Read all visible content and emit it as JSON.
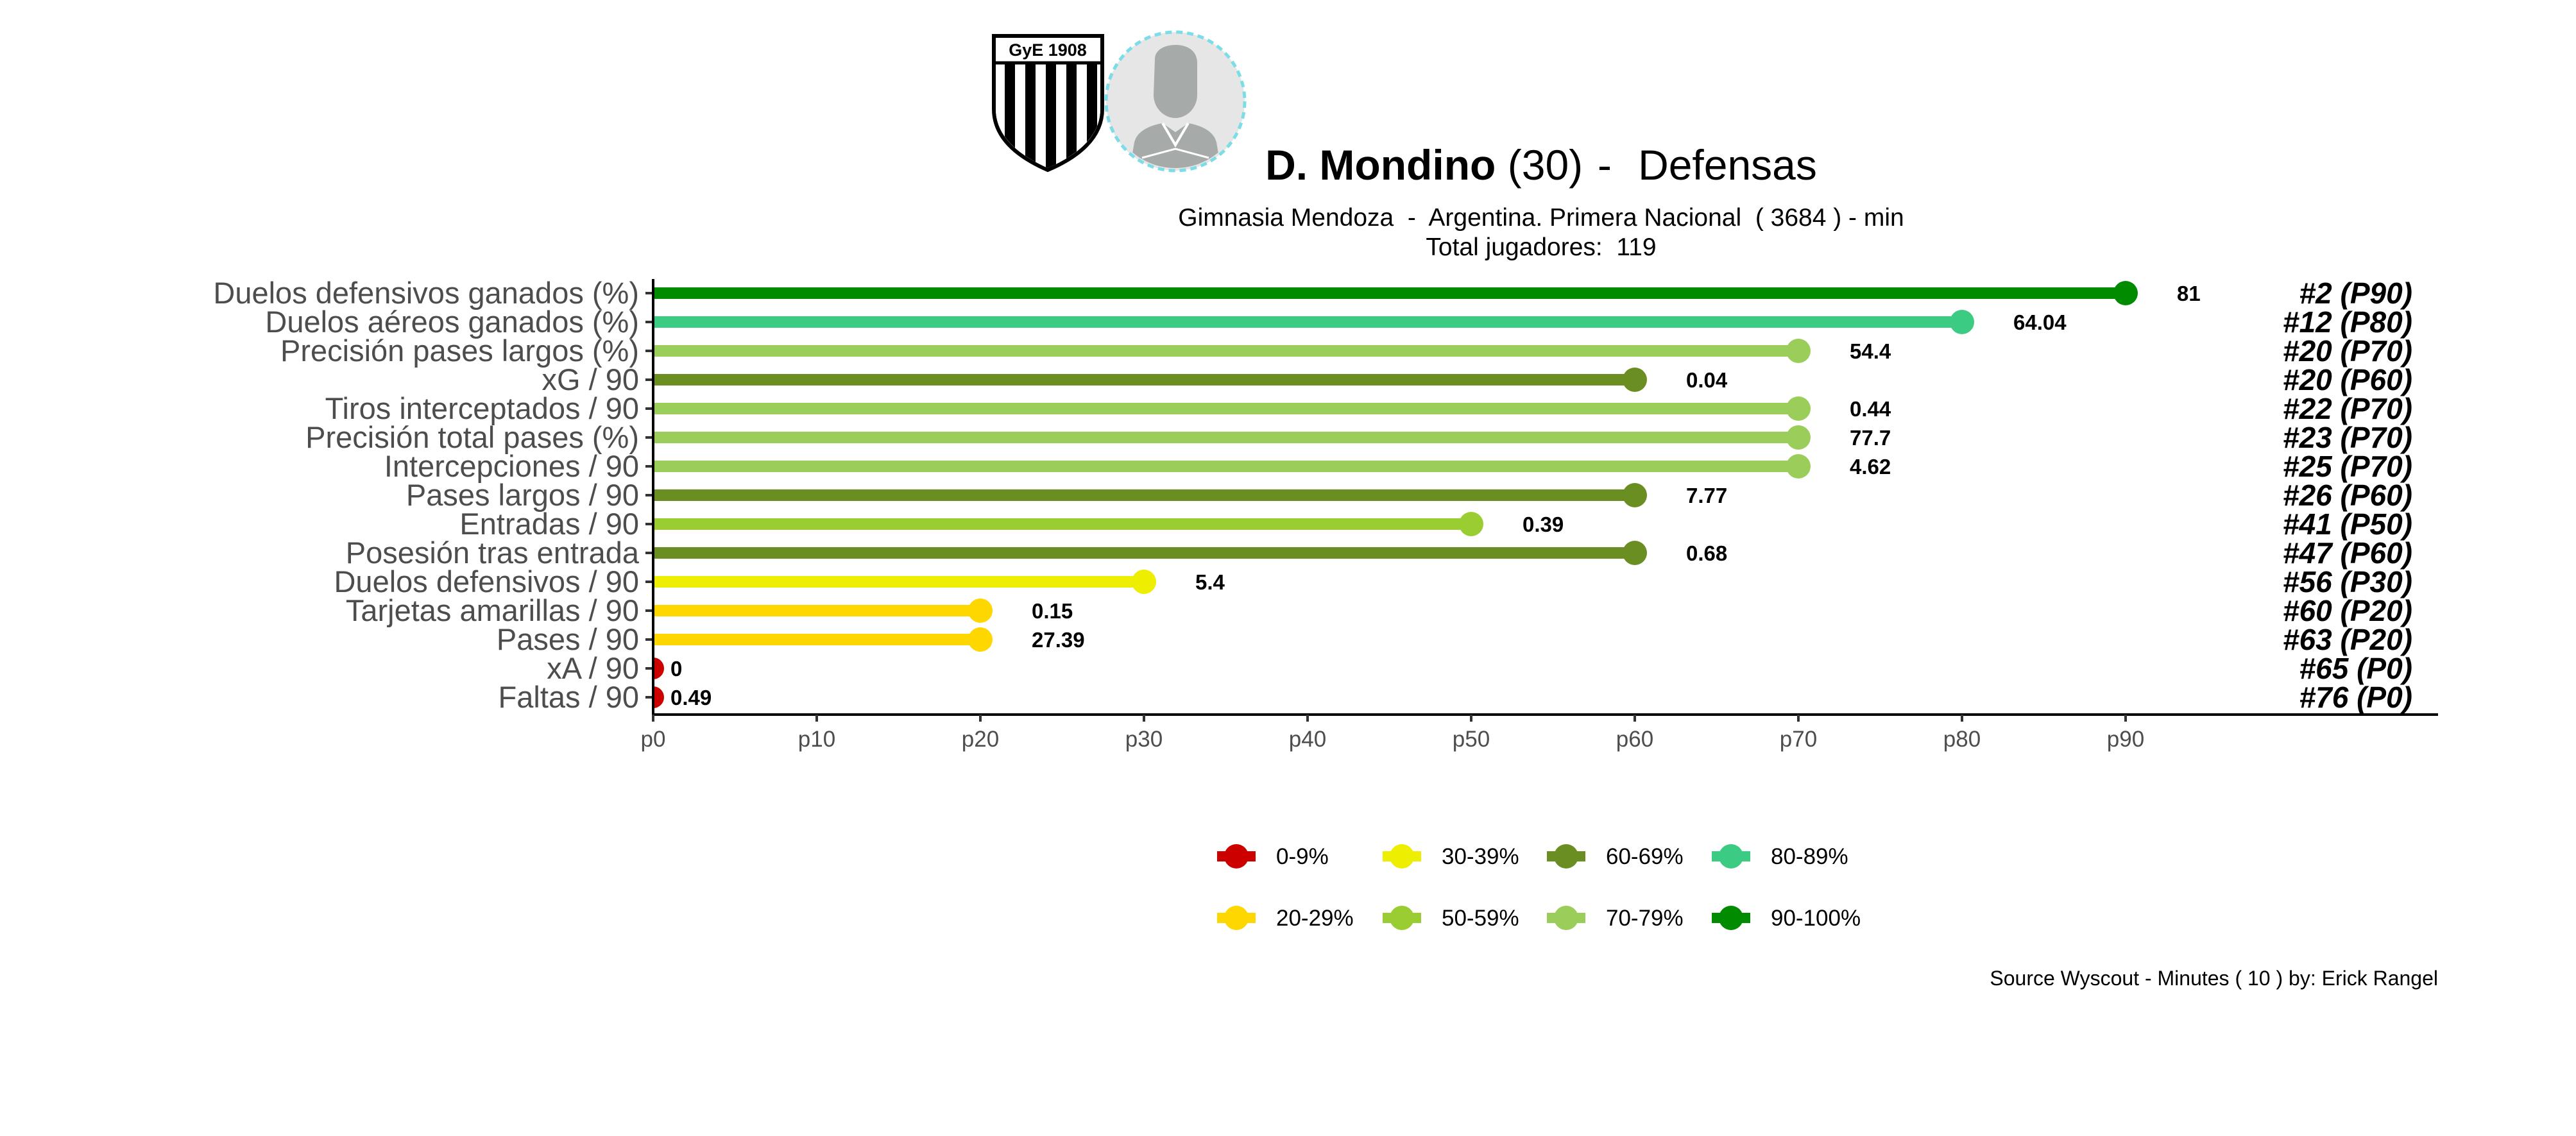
{
  "header": {
    "player_name": "D. Mondino",
    "player_age": "(30)",
    "separator": " -  ",
    "position": "Defensas",
    "team_line": "Gimnasia Mendoza  -  Argentina. Primera Nacional  ( 3684 ) - min",
    "total_line": "Total jugadores:  119",
    "crest_text": "GyE 1908",
    "crest_icon": "club-crest-icon",
    "avatar_icon": "player-silhouette-icon"
  },
  "chart_data": {
    "type": "bar",
    "orientation": "horizontal-lollipop",
    "title": "",
    "xlabel": "",
    "ylabel": "",
    "xlim": [
      0,
      100
    ],
    "grid": false,
    "ticks": [
      {
        "value": 0,
        "label": "p0"
      },
      {
        "value": 10,
        "label": "p10"
      },
      {
        "value": 20,
        "label": "p20"
      },
      {
        "value": 30,
        "label": "p30"
      },
      {
        "value": 40,
        "label": "p40"
      },
      {
        "value": 50,
        "label": "p50"
      },
      {
        "value": 60,
        "label": "p60"
      },
      {
        "value": 70,
        "label": "p70"
      },
      {
        "value": 80,
        "label": "p80"
      },
      {
        "value": 90,
        "label": "p90"
      }
    ],
    "rows": [
      {
        "metric": "Duelos defensivos ganados (%)",
        "percentile": 90,
        "value": "81",
        "rank": "#2 (P90)",
        "color": "#008B00"
      },
      {
        "metric": "Duelos aéreos ganados (%)",
        "percentile": 80,
        "value": "64.04",
        "rank": "#12 (P80)",
        "color": "#3CCB82"
      },
      {
        "metric": "Precisión pases largos (%)",
        "percentile": 70,
        "value": "54.4",
        "rank": "#20 (P70)",
        "color": "#9ACD5A"
      },
      {
        "metric": "xG / 90",
        "percentile": 60,
        "value": "0.04",
        "rank": "#20 (P60)",
        "color": "#6B8E23"
      },
      {
        "metric": "Tiros interceptados / 90",
        "percentile": 70,
        "value": "0.44",
        "rank": "#22 (P70)",
        "color": "#9ACD5A"
      },
      {
        "metric": "Precisión total pases (%)",
        "percentile": 70,
        "value": "77.7",
        "rank": "#23 (P70)",
        "color": "#9ACD5A"
      },
      {
        "metric": "Intercepciones / 90",
        "percentile": 70,
        "value": "4.62",
        "rank": "#25 (P70)",
        "color": "#9ACD5A"
      },
      {
        "metric": "Pases largos / 90",
        "percentile": 60,
        "value": "7.77",
        "rank": "#26 (P60)",
        "color": "#6B8E23"
      },
      {
        "metric": "Entradas / 90",
        "percentile": 50,
        "value": "0.39",
        "rank": "#41 (P50)",
        "color": "#9ACD32"
      },
      {
        "metric": "Posesión tras entrada",
        "percentile": 60,
        "value": "0.68",
        "rank": "#47 (P60)",
        "color": "#6B8E23"
      },
      {
        "metric": "Duelos defensivos / 90",
        "percentile": 30,
        "value": "5.4",
        "rank": "#56 (P30)",
        "color": "#EEEE00"
      },
      {
        "metric": "Tarjetas amarillas / 90",
        "percentile": 20,
        "value": "0.15",
        "rank": "#60 (P20)",
        "color": "#FFD700"
      },
      {
        "metric": "Pases / 90",
        "percentile": 20,
        "value": "27.39",
        "rank": "#63 (P20)",
        "color": "#FFD700"
      },
      {
        "metric": "xA / 90",
        "percentile": 0,
        "value": "0",
        "rank": "#65 (P0)",
        "color": "#CD0000"
      },
      {
        "metric": "Faltas / 90",
        "percentile": 0,
        "value": "0.49",
        "rank": "#76 (P0)",
        "color": "#CD0000"
      }
    ],
    "legend": {
      "placement": "bottom",
      "entries": [
        {
          "label": "0-9%",
          "color": "#CD0000"
        },
        {
          "label": "20-29%",
          "color": "#FFD700"
        },
        {
          "label": "30-39%",
          "color": "#EEEE00"
        },
        {
          "label": "50-59%",
          "color": "#9ACD32"
        },
        {
          "label": "60-69%",
          "color": "#6B8E23"
        },
        {
          "label": "70-79%",
          "color": "#9ACD5A"
        },
        {
          "label": "80-89%",
          "color": "#3CCB82"
        },
        {
          "label": "90-100%",
          "color": "#008B00"
        }
      ]
    }
  },
  "caption": "Source Wyscout - Minutes ( 10 ) by: Erick Rangel"
}
